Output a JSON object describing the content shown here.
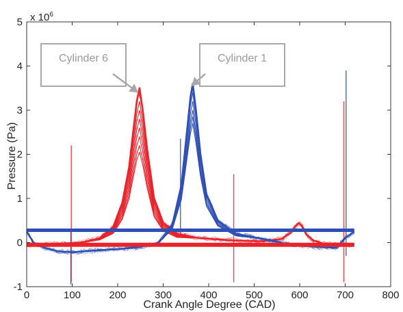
{
  "chart_data": {
    "type": "line",
    "xlabel": "Crank Angle Degree (CAD)",
    "ylabel": "Pressure (Pa)",
    "y_exponent_label": "x 10",
    "y_exponent_power": "6",
    "xlim": [
      0,
      800
    ],
    "ylim": [
      -1,
      5
    ],
    "x_ticks": [
      0,
      100,
      200,
      300,
      400,
      500,
      600,
      700,
      800
    ],
    "y_ticks": [
      -1,
      0,
      1,
      2,
      3,
      4,
      5
    ],
    "x_tick_labels": [
      "0",
      "100",
      "200",
      "300",
      "400",
      "500",
      "600",
      "700",
      "800"
    ],
    "y_tick_labels": [
      "-1",
      "0",
      "1",
      "2",
      "3",
      "4",
      "5"
    ],
    "grid": false,
    "colors": {
      "cylinder_6": "#e8232a",
      "cylinder_1": "#2e4fb5"
    },
    "annotations": [
      {
        "text": "Cylinder 6",
        "points_to": [
          245,
          3.4
        ]
      },
      {
        "text": "Cylinder 1",
        "points_to": [
          362,
          3.55
        ]
      }
    ],
    "series": [
      {
        "color": "#e8232a",
        "peak_cad": 248,
        "peak_values": [
          3.5,
          3.2,
          3.0,
          2.8,
          2.6,
          2.4,
          2.2,
          2.05
        ],
        "x": [
          0,
          60,
          120,
          160,
          190,
          210,
          225,
          235,
          242,
          248,
          255,
          265,
          280,
          300,
          330,
          380,
          450,
          520,
          560,
          580,
          590,
          598,
          605,
          615,
          630,
          650,
          700,
          720
        ],
        "y": [
          -0.05,
          -0.03,
          0.0,
          0.1,
          0.35,
          0.9,
          1.7,
          2.6,
          3.2,
          3.5,
          3.0,
          2.1,
          1.0,
          0.45,
          0.2,
          0.1,
          0.05,
          0.03,
          0.08,
          0.22,
          0.36,
          0.44,
          0.38,
          0.18,
          0.05,
          -0.02,
          -0.05,
          -0.05
        ],
        "spikes": [
          {
            "x": 98,
            "y_min": -0.9,
            "y_max": 2.2
          },
          {
            "x": 455,
            "y_min": -0.9,
            "y_max": 1.55
          },
          {
            "x": 697,
            "y_min": -0.9,
            "y_max": 3.2
          }
        ]
      },
      {
        "color": "#2e4fb5",
        "peak_cad": 365,
        "peak_values": [
          3.6,
          3.4,
          3.2,
          3.0,
          2.85,
          2.7
        ],
        "x": [
          0,
          15,
          40,
          70,
          100,
          150,
          200,
          250,
          290,
          320,
          340,
          352,
          360,
          365,
          372,
          382,
          395,
          420,
          460,
          520,
          580,
          640,
          680,
          700,
          720
        ],
        "y": [
          0.25,
          0.0,
          -0.12,
          -0.2,
          -0.22,
          -0.18,
          -0.15,
          -0.1,
          0.0,
          0.4,
          1.3,
          2.5,
          3.3,
          3.6,
          3.0,
          2.0,
          1.1,
          0.5,
          0.2,
          0.08,
          -0.05,
          -0.1,
          -0.12,
          0.1,
          0.25
        ],
        "flat_line_value": 0.28,
        "spikes": [
          {
            "x": 97,
            "y_min": -0.95,
            "y_max": 0.3
          },
          {
            "x": 338,
            "y_min": 0.2,
            "y_max": 2.35
          },
          {
            "x": 702,
            "y_min": -0.3,
            "y_max": 3.9
          }
        ]
      }
    ]
  }
}
